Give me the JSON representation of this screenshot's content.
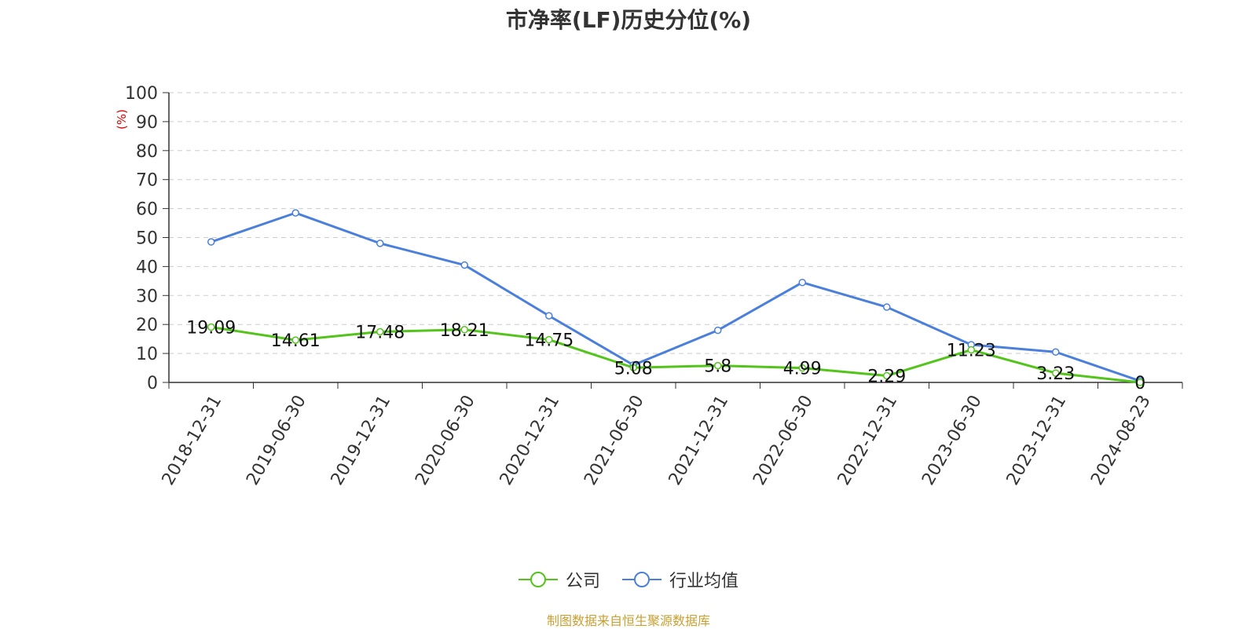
{
  "chart_data": {
    "type": "line",
    "title": "市净率(LF)历史分位(%)",
    "ylabel": "(%)",
    "xlabel": "",
    "ylim": [
      0,
      100
    ],
    "yticks": [
      0,
      10,
      20,
      30,
      40,
      50,
      60,
      70,
      80,
      90,
      100
    ],
    "grid": true,
    "legend_position": "bottom",
    "categories": [
      "2018-12-31",
      "2019-06-30",
      "2019-12-31",
      "2020-06-30",
      "2020-12-31",
      "2021-06-30",
      "2021-12-31",
      "2022-06-30",
      "2022-12-31",
      "2023-06-30",
      "2023-12-31",
      "2024-08-23"
    ],
    "series": [
      {
        "name": "公司",
        "color": "#52c41a",
        "values": [
          19.09,
          14.61,
          17.48,
          18.21,
          14.75,
          5.08,
          5.8,
          4.99,
          2.29,
          11.23,
          3.23,
          0
        ],
        "labels": [
          "19.09",
          "14.61",
          "17.48",
          "18.21",
          "14.75",
          "5.08",
          "5.8",
          "4.99",
          "2.29",
          "11.23",
          "3.23",
          "0"
        ]
      },
      {
        "name": "行业均值",
        "color": "#4a7fdc",
        "values": [
          48.5,
          58.5,
          48.0,
          40.5,
          23.0,
          6.0,
          18.0,
          34.5,
          26.0,
          13.0,
          10.5,
          0.5
        ]
      }
    ]
  },
  "source_note": "制图数据来自恒生聚源数据库"
}
